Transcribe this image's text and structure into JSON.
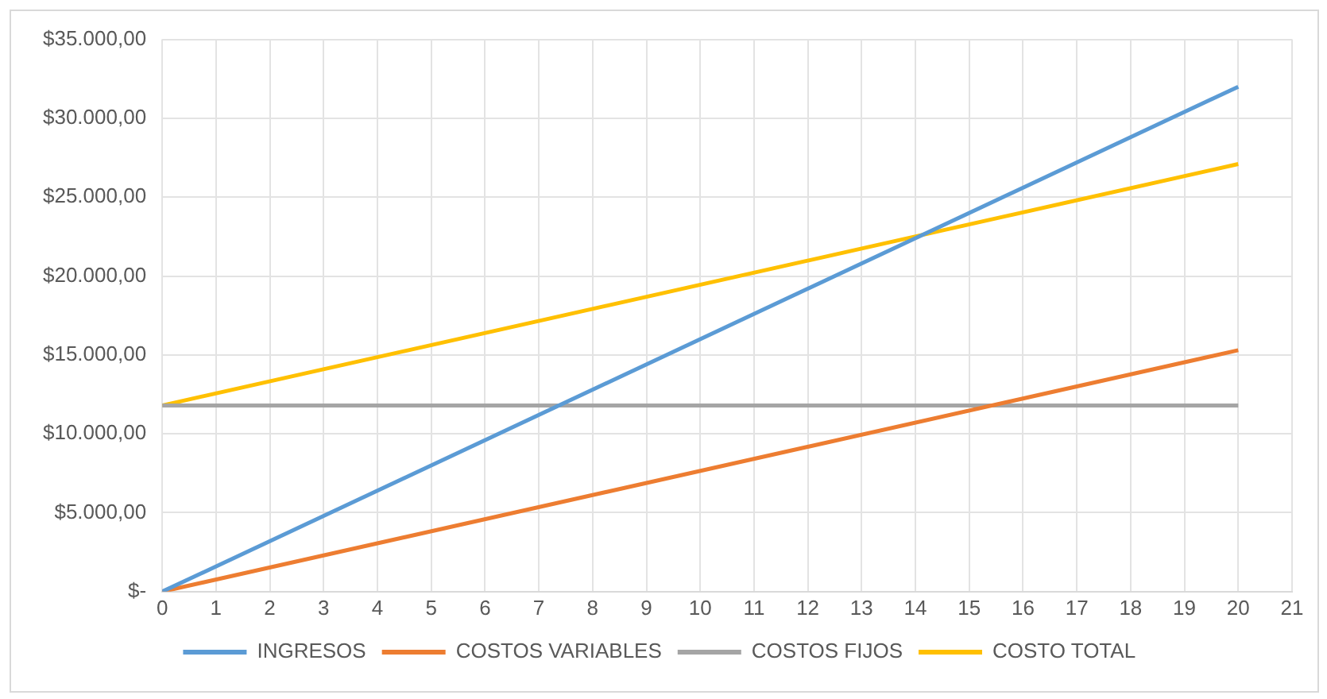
{
  "chart_data": {
    "type": "line",
    "x": [
      0,
      20
    ],
    "series": [
      {
        "name": "INGRESOS",
        "color": "#5b9bd5",
        "values": [
          0,
          32000
        ]
      },
      {
        "name": "COSTOS VARIABLES",
        "color": "#ed7d31",
        "values": [
          0,
          15300
        ]
      },
      {
        "name": "COSTOS FIJOS",
        "color": "#a5a5a5",
        "values": [
          11800,
          11800
        ]
      },
      {
        "name": "COSTO TOTAL",
        "color": "#ffc000",
        "values": [
          11800,
          27100
        ]
      }
    ],
    "xlim": [
      0,
      21
    ],
    "xticks": [
      0,
      1,
      2,
      3,
      4,
      5,
      6,
      7,
      8,
      9,
      10,
      11,
      12,
      13,
      14,
      15,
      16,
      17,
      18,
      19,
      20,
      21
    ],
    "ylim": [
      0,
      35000
    ],
    "yticks": [
      {
        "value": 0,
        "label": "$-"
      },
      {
        "value": 5000,
        "label": "$5.000,00"
      },
      {
        "value": 10000,
        "label": "$10.000,00"
      },
      {
        "value": 15000,
        "label": "$15.000,00"
      },
      {
        "value": 20000,
        "label": "$20.000,00"
      },
      {
        "value": 25000,
        "label": "$25.000,00"
      },
      {
        "value": 30000,
        "label": "$30.000,00"
      },
      {
        "value": 35000,
        "label": "$35.000,00"
      }
    ],
    "grid": true,
    "legend": "bottom",
    "marker": "none",
    "line_style": "solid"
  }
}
